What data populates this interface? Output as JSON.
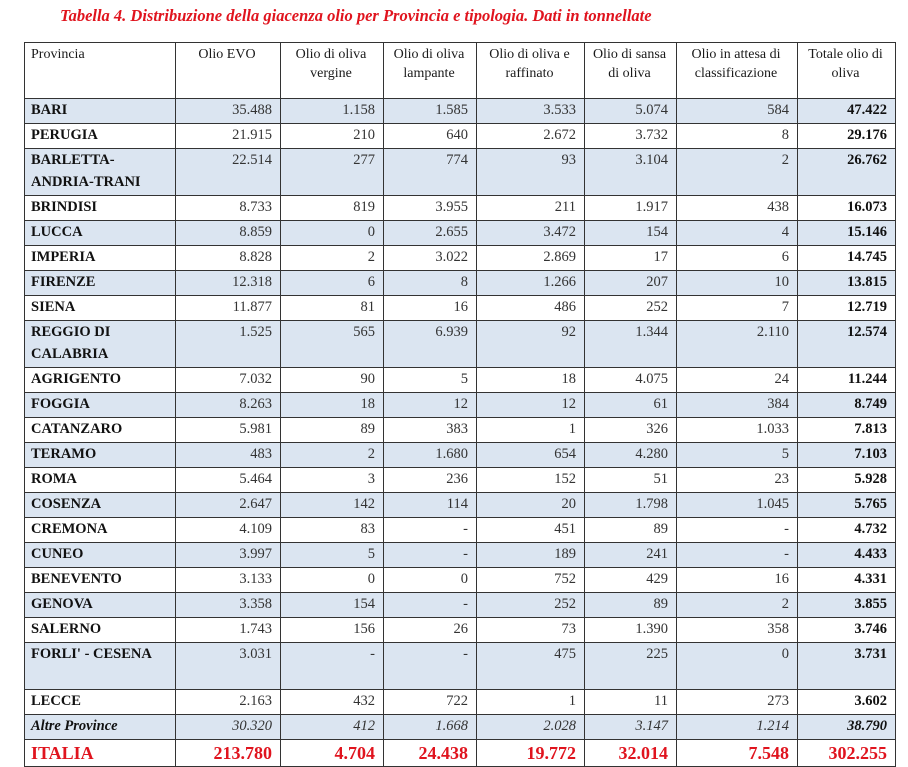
{
  "title": "Tabella 4. Distribuzione della giacenza olio per Provincia e tipologia. Dati in tonnellate",
  "headers": [
    "Provincia",
    "Olio EVO",
    "Olio di oliva vergine",
    "Olio di oliva lampante",
    "Olio di oliva e raffinato",
    "Olio di sansa di oliva",
    "Olio in attesa di classificazione",
    "Totale olio di oliva"
  ],
  "rows": [
    [
      "BARI",
      "35.488",
      "1.158",
      "1.585",
      "3.533",
      "5.074",
      "584",
      "47.422"
    ],
    [
      "PERUGIA",
      "21.915",
      "210",
      "640",
      "2.672",
      "3.732",
      "8",
      "29.176"
    ],
    [
      "BARLETTA-ANDRIA-TRANI",
      "22.514",
      "277",
      "774",
      "93",
      "3.104",
      "2",
      "26.762"
    ],
    [
      "BRINDISI",
      "8.733",
      "819",
      "3.955",
      "211",
      "1.917",
      "438",
      "16.073"
    ],
    [
      "LUCCA",
      "8.859",
      "0",
      "2.655",
      "3.472",
      "154",
      "4",
      "15.146"
    ],
    [
      "IMPERIA",
      "8.828",
      "2",
      "3.022",
      "2.869",
      "17",
      "6",
      "14.745"
    ],
    [
      "FIRENZE",
      "12.318",
      "6",
      "8",
      "1.266",
      "207",
      "10",
      "13.815"
    ],
    [
      "SIENA",
      "11.877",
      "81",
      "16",
      "486",
      "252",
      "7",
      "12.719"
    ],
    [
      "REGGIO DI CALABRIA",
      "1.525",
      "565",
      "6.939",
      "92",
      "1.344",
      "2.110",
      "12.574"
    ],
    [
      "AGRIGENTO",
      "7.032",
      "90",
      "5",
      "18",
      "4.075",
      "24",
      "11.244"
    ],
    [
      "FOGGIA",
      "8.263",
      "18",
      "12",
      "12",
      "61",
      "384",
      "8.749"
    ],
    [
      "CATANZARO",
      "5.981",
      "89",
      "383",
      "1",
      "326",
      "1.033",
      "7.813"
    ],
    [
      "TERAMO",
      "483",
      "2",
      "1.680",
      "654",
      "4.280",
      "5",
      "7.103"
    ],
    [
      "ROMA",
      "5.464",
      "3",
      "236",
      "152",
      "51",
      "23",
      "5.928"
    ],
    [
      "COSENZA",
      "2.647",
      "142",
      "114",
      "20",
      "1.798",
      "1.045",
      "5.765"
    ],
    [
      "CREMONA",
      "4.109",
      "83",
      "-",
      "451",
      "89",
      "-",
      "4.732"
    ],
    [
      "CUNEO",
      "3.997",
      "5",
      "-",
      "189",
      "241",
      "-",
      "4.433"
    ],
    [
      "BENEVENTO",
      "3.133",
      "0",
      "0",
      "752",
      "429",
      "16",
      "4.331"
    ],
    [
      "GENOVA",
      "3.358",
      "154",
      "-",
      "252",
      "89",
      "2",
      "3.855"
    ],
    [
      "SALERNO",
      "1.743",
      "156",
      "26",
      "73",
      "1.390",
      "358",
      "3.746"
    ],
    [
      "FORLI' - CESENA",
      "3.031",
      "-",
      "-",
      "475",
      "225",
      "0",
      "3.731"
    ],
    [
      "LECCE",
      "2.163",
      "432",
      "722",
      "1",
      "11",
      "273",
      "3.602"
    ],
    [
      "Altre Province",
      "30.320",
      "412",
      "1.668",
      "2.028",
      "3.147",
      "1.214",
      "38.790"
    ],
    [
      "ITALIA",
      "213.780",
      "4.704",
      "24.438",
      "19.772",
      "32.014",
      "7.548",
      "302.255"
    ]
  ],
  "colors": {
    "accent": "#e0141e",
    "shade": "#dbe5f1"
  }
}
